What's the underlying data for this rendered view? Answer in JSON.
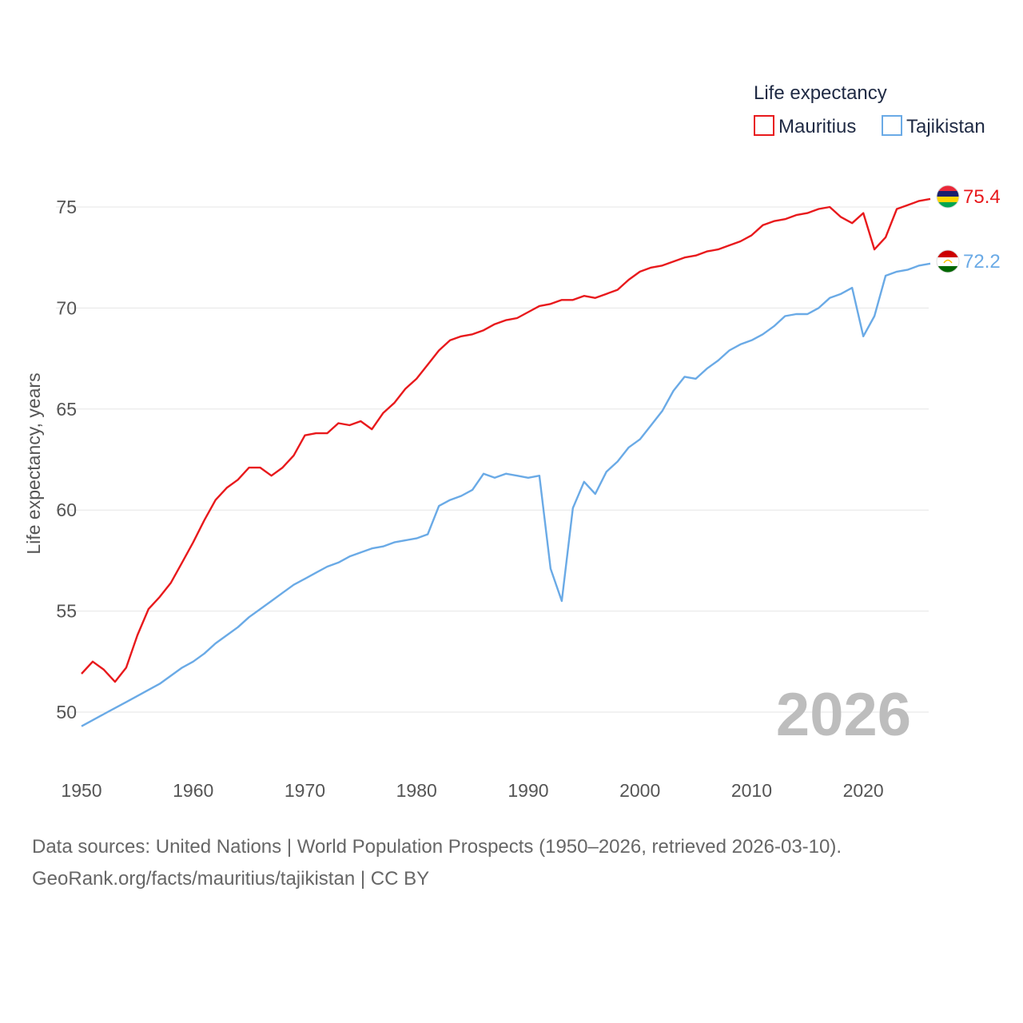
{
  "chart_data": {
    "type": "line",
    "legend_title": "Life expectancy",
    "ylabel": "Life expectancy, years",
    "xlabel": "",
    "xlim": [
      1950,
      2026
    ],
    "ylim": [
      48,
      77
    ],
    "yticks": [
      50,
      55,
      60,
      65,
      70,
      75
    ],
    "xticks": [
      1950,
      1960,
      1970,
      1980,
      1990,
      2000,
      2010,
      2020
    ],
    "year_label": "2026",
    "legend_position": "top-right",
    "series": [
      {
        "name": "Mauritius",
        "color": "#e8191c",
        "end_label": "75.4",
        "flag": "mauritius-flag-icon",
        "values": [
          51.9,
          52.5,
          52.1,
          51.5,
          52.2,
          53.8,
          55.1,
          55.7,
          56.4,
          57.4,
          58.4,
          59.5,
          60.5,
          61.1,
          61.5,
          62.1,
          62.1,
          61.7,
          62.1,
          62.7,
          63.7,
          63.8,
          63.8,
          64.3,
          64.2,
          64.4,
          64.0,
          64.8,
          65.3,
          66.0,
          66.5,
          67.2,
          67.9,
          68.4,
          68.6,
          68.7,
          68.9,
          69.2,
          69.4,
          69.5,
          69.8,
          70.1,
          70.2,
          70.4,
          70.4,
          70.6,
          70.5,
          70.7,
          70.9,
          71.4,
          71.8,
          72.0,
          72.1,
          72.3,
          72.5,
          72.6,
          72.8,
          72.9,
          73.1,
          73.3,
          73.6,
          74.1,
          74.3,
          74.4,
          74.6,
          74.7,
          74.9,
          75.0,
          74.5,
          74.2,
          74.7,
          72.9,
          73.5,
          74.9,
          75.1,
          75.3,
          75.4
        ]
      },
      {
        "name": "Tajikistan",
        "color": "#6aaae6",
        "end_label": "72.2",
        "flag": "tajikistan-flag-icon",
        "values": [
          49.3,
          49.6,
          49.9,
          50.2,
          50.5,
          50.8,
          51.1,
          51.4,
          51.8,
          52.2,
          52.5,
          52.9,
          53.4,
          53.8,
          54.2,
          54.7,
          55.1,
          55.5,
          55.9,
          56.3,
          56.6,
          56.9,
          57.2,
          57.4,
          57.7,
          57.9,
          58.1,
          58.2,
          58.4,
          58.5,
          58.6,
          58.8,
          60.2,
          60.5,
          60.7,
          61.0,
          61.8,
          61.6,
          61.8,
          61.7,
          61.6,
          61.7,
          57.1,
          55.5,
          60.1,
          61.4,
          60.8,
          61.9,
          62.4,
          63.1,
          63.5,
          64.2,
          64.9,
          65.9,
          66.6,
          66.5,
          67.0,
          67.4,
          67.9,
          68.2,
          68.4,
          68.7,
          69.1,
          69.6,
          69.7,
          69.7,
          70.0,
          70.5,
          70.7,
          71.0,
          68.6,
          69.6,
          71.6,
          71.8,
          71.9,
          72.1,
          72.2
        ]
      }
    ]
  },
  "footer": {
    "line1": "Data sources: United Nations | World Population Prospects (1950–2026, retrieved 2026-03-10).",
    "line2": "GeoRank.org/facts/mauritius/tajikistan | CC BY"
  }
}
